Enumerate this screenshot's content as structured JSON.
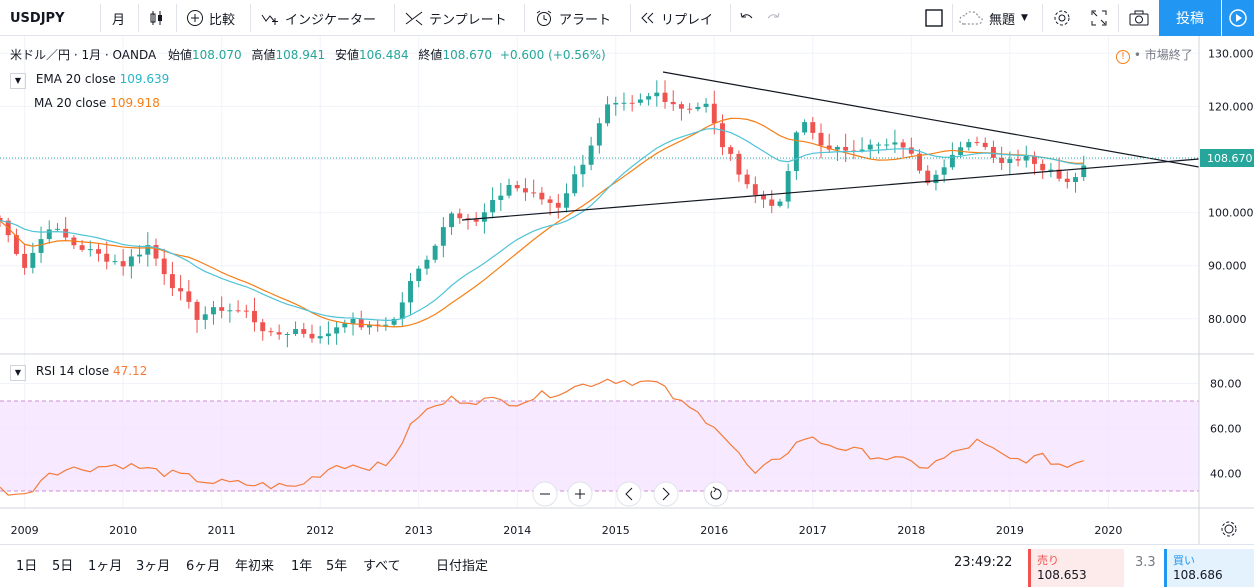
{
  "toolbar": {
    "symbol": "USDJPY",
    "interval": "月",
    "compare": "比較",
    "indicators": "インジケーター",
    "templates": "テンプレート",
    "alert": "アラート",
    "replay": "リプレイ",
    "layout_name": "無題",
    "publish": "投稿"
  },
  "header": {
    "title": "米ドル／円 · 1月 · OANDA",
    "open_label": "始値",
    "open": "108.070",
    "high_label": "高値",
    "high": "108.941",
    "low_label": "安値",
    "low": "106.484",
    "close_label": "終値",
    "close": "108.670",
    "change": "+0.600 (+0.56%)",
    "market_status": "市場終了"
  },
  "indicators": {
    "ema": {
      "name": "EMA 20 close",
      "value": "109.639",
      "color": "#4fc3d7"
    },
    "ma": {
      "name": "MA  20 close",
      "value": "109.918",
      "color": "#f57f17"
    },
    "rsi": {
      "name": "RSI  14 close",
      "value": "47.12",
      "color": "#f47b3a"
    }
  },
  "price_axis": {
    "labels": [
      "130.000",
      "120.000",
      "110.000",
      "100.000",
      "90.000",
      "80.000"
    ],
    "last_price": "108.670",
    "last_color": "#26a69a"
  },
  "rsi_axis": {
    "labels": [
      "80.00",
      "60.00",
      "40.00"
    ]
  },
  "time_axis": {
    "labels": [
      "2009",
      "2010",
      "2011",
      "2012",
      "2013",
      "2014",
      "2015",
      "2016",
      "2017",
      "2018",
      "2019",
      "2020"
    ]
  },
  "ranges": [
    "1日",
    "5日",
    "1ヶ月",
    "3ヶ月",
    "6ヶ月",
    "年初来",
    "1年",
    "5年",
    "すべて"
  ],
  "goto_date": "日付指定",
  "clock": "23:49:22",
  "sell": {
    "label": "売り",
    "price": "108.653"
  },
  "spread": "3.3",
  "buy": {
    "label": "買い",
    "price": "108.686"
  },
  "chart_data": {
    "type": "candlestick",
    "symbol": "USDJPY",
    "interval": "1M",
    "x_range": [
      "2008-10",
      "2019-10"
    ],
    "y_range": [
      70,
      132
    ],
    "price_close_approx": [
      [
        2008,
        10,
        98.5
      ],
      [
        2009,
        1,
        90
      ],
      [
        2009,
        4,
        97.5
      ],
      [
        2009,
        7,
        94
      ],
      [
        2009,
        10,
        92
      ],
      [
        2010,
        1,
        90.3
      ],
      [
        2010,
        4,
        93.8
      ],
      [
        2010,
        7,
        86.5
      ],
      [
        2010,
        10,
        80.4
      ],
      [
        2011,
        1,
        82
      ],
      [
        2011,
        4,
        81.2
      ],
      [
        2011,
        7,
        76.7
      ],
      [
        2011,
        10,
        78
      ],
      [
        2012,
        1,
        76.3
      ],
      [
        2012,
        4,
        79.8
      ],
      [
        2012,
        7,
        78.3
      ],
      [
        2012,
        10,
        79.8
      ],
      [
        2012,
        12,
        86.7
      ],
      [
        2013,
        3,
        94.2
      ],
      [
        2013,
        5,
        100.5
      ],
      [
        2013,
        8,
        98
      ],
      [
        2013,
        12,
        105.3
      ],
      [
        2014,
        3,
        103.2
      ],
      [
        2014,
        6,
        101.3
      ],
      [
        2014,
        9,
        109.6
      ],
      [
        2014,
        12,
        119.8
      ],
      [
        2015,
        3,
        120.1
      ],
      [
        2015,
        6,
        122.5
      ],
      [
        2015,
        9,
        119.8
      ],
      [
        2015,
        12,
        120.2
      ],
      [
        2016,
        2,
        112.7
      ],
      [
        2016,
        6,
        103.2
      ],
      [
        2016,
        9,
        101.3
      ],
      [
        2016,
        11,
        114.5
      ],
      [
        2016,
        12,
        116.9
      ],
      [
        2017,
        3,
        111.4
      ],
      [
        2017,
        6,
        112.4
      ],
      [
        2017,
        9,
        112.5
      ],
      [
        2017,
        12,
        112.7
      ],
      [
        2018,
        3,
        106.3
      ],
      [
        2018,
        6,
        110.8
      ],
      [
        2018,
        9,
        113.7
      ],
      [
        2018,
        12,
        109.7
      ],
      [
        2019,
        3,
        110.9
      ],
      [
        2019,
        5,
        108.3
      ],
      [
        2019,
        8,
        106.3
      ],
      [
        2019,
        10,
        108.67
      ]
    ],
    "ema20_end": 109.639,
    "ma20_end": 109.918,
    "rsi14_approx": [
      [
        2008,
        10,
        33
      ],
      [
        2009,
        1,
        30
      ],
      [
        2009,
        4,
        41
      ],
      [
        2010,
        1,
        44
      ],
      [
        2010,
        12,
        36
      ],
      [
        2011,
        10,
        34
      ],
      [
        2012,
        3,
        44
      ],
      [
        2012,
        9,
        43
      ],
      [
        2013,
        1,
        66
      ],
      [
        2013,
        5,
        73
      ],
      [
        2014,
        1,
        72
      ],
      [
        2014,
        12,
        82
      ],
      [
        2015,
        6,
        80
      ],
      [
        2015,
        9,
        71
      ],
      [
        2016,
        1,
        62
      ],
      [
        2016,
        6,
        39
      ],
      [
        2016,
        12,
        56
      ],
      [
        2017,
        6,
        50
      ],
      [
        2018,
        3,
        43
      ],
      [
        2018,
        9,
        54
      ],
      [
        2019,
        1,
        46
      ],
      [
        2019,
        5,
        47
      ],
      [
        2019,
        8,
        43
      ],
      [
        2019,
        10,
        47.12
      ]
    ],
    "rsi_band": [
      30,
      70
    ],
    "trendlines": "converging triangle from 2015 high and 2013 low"
  }
}
